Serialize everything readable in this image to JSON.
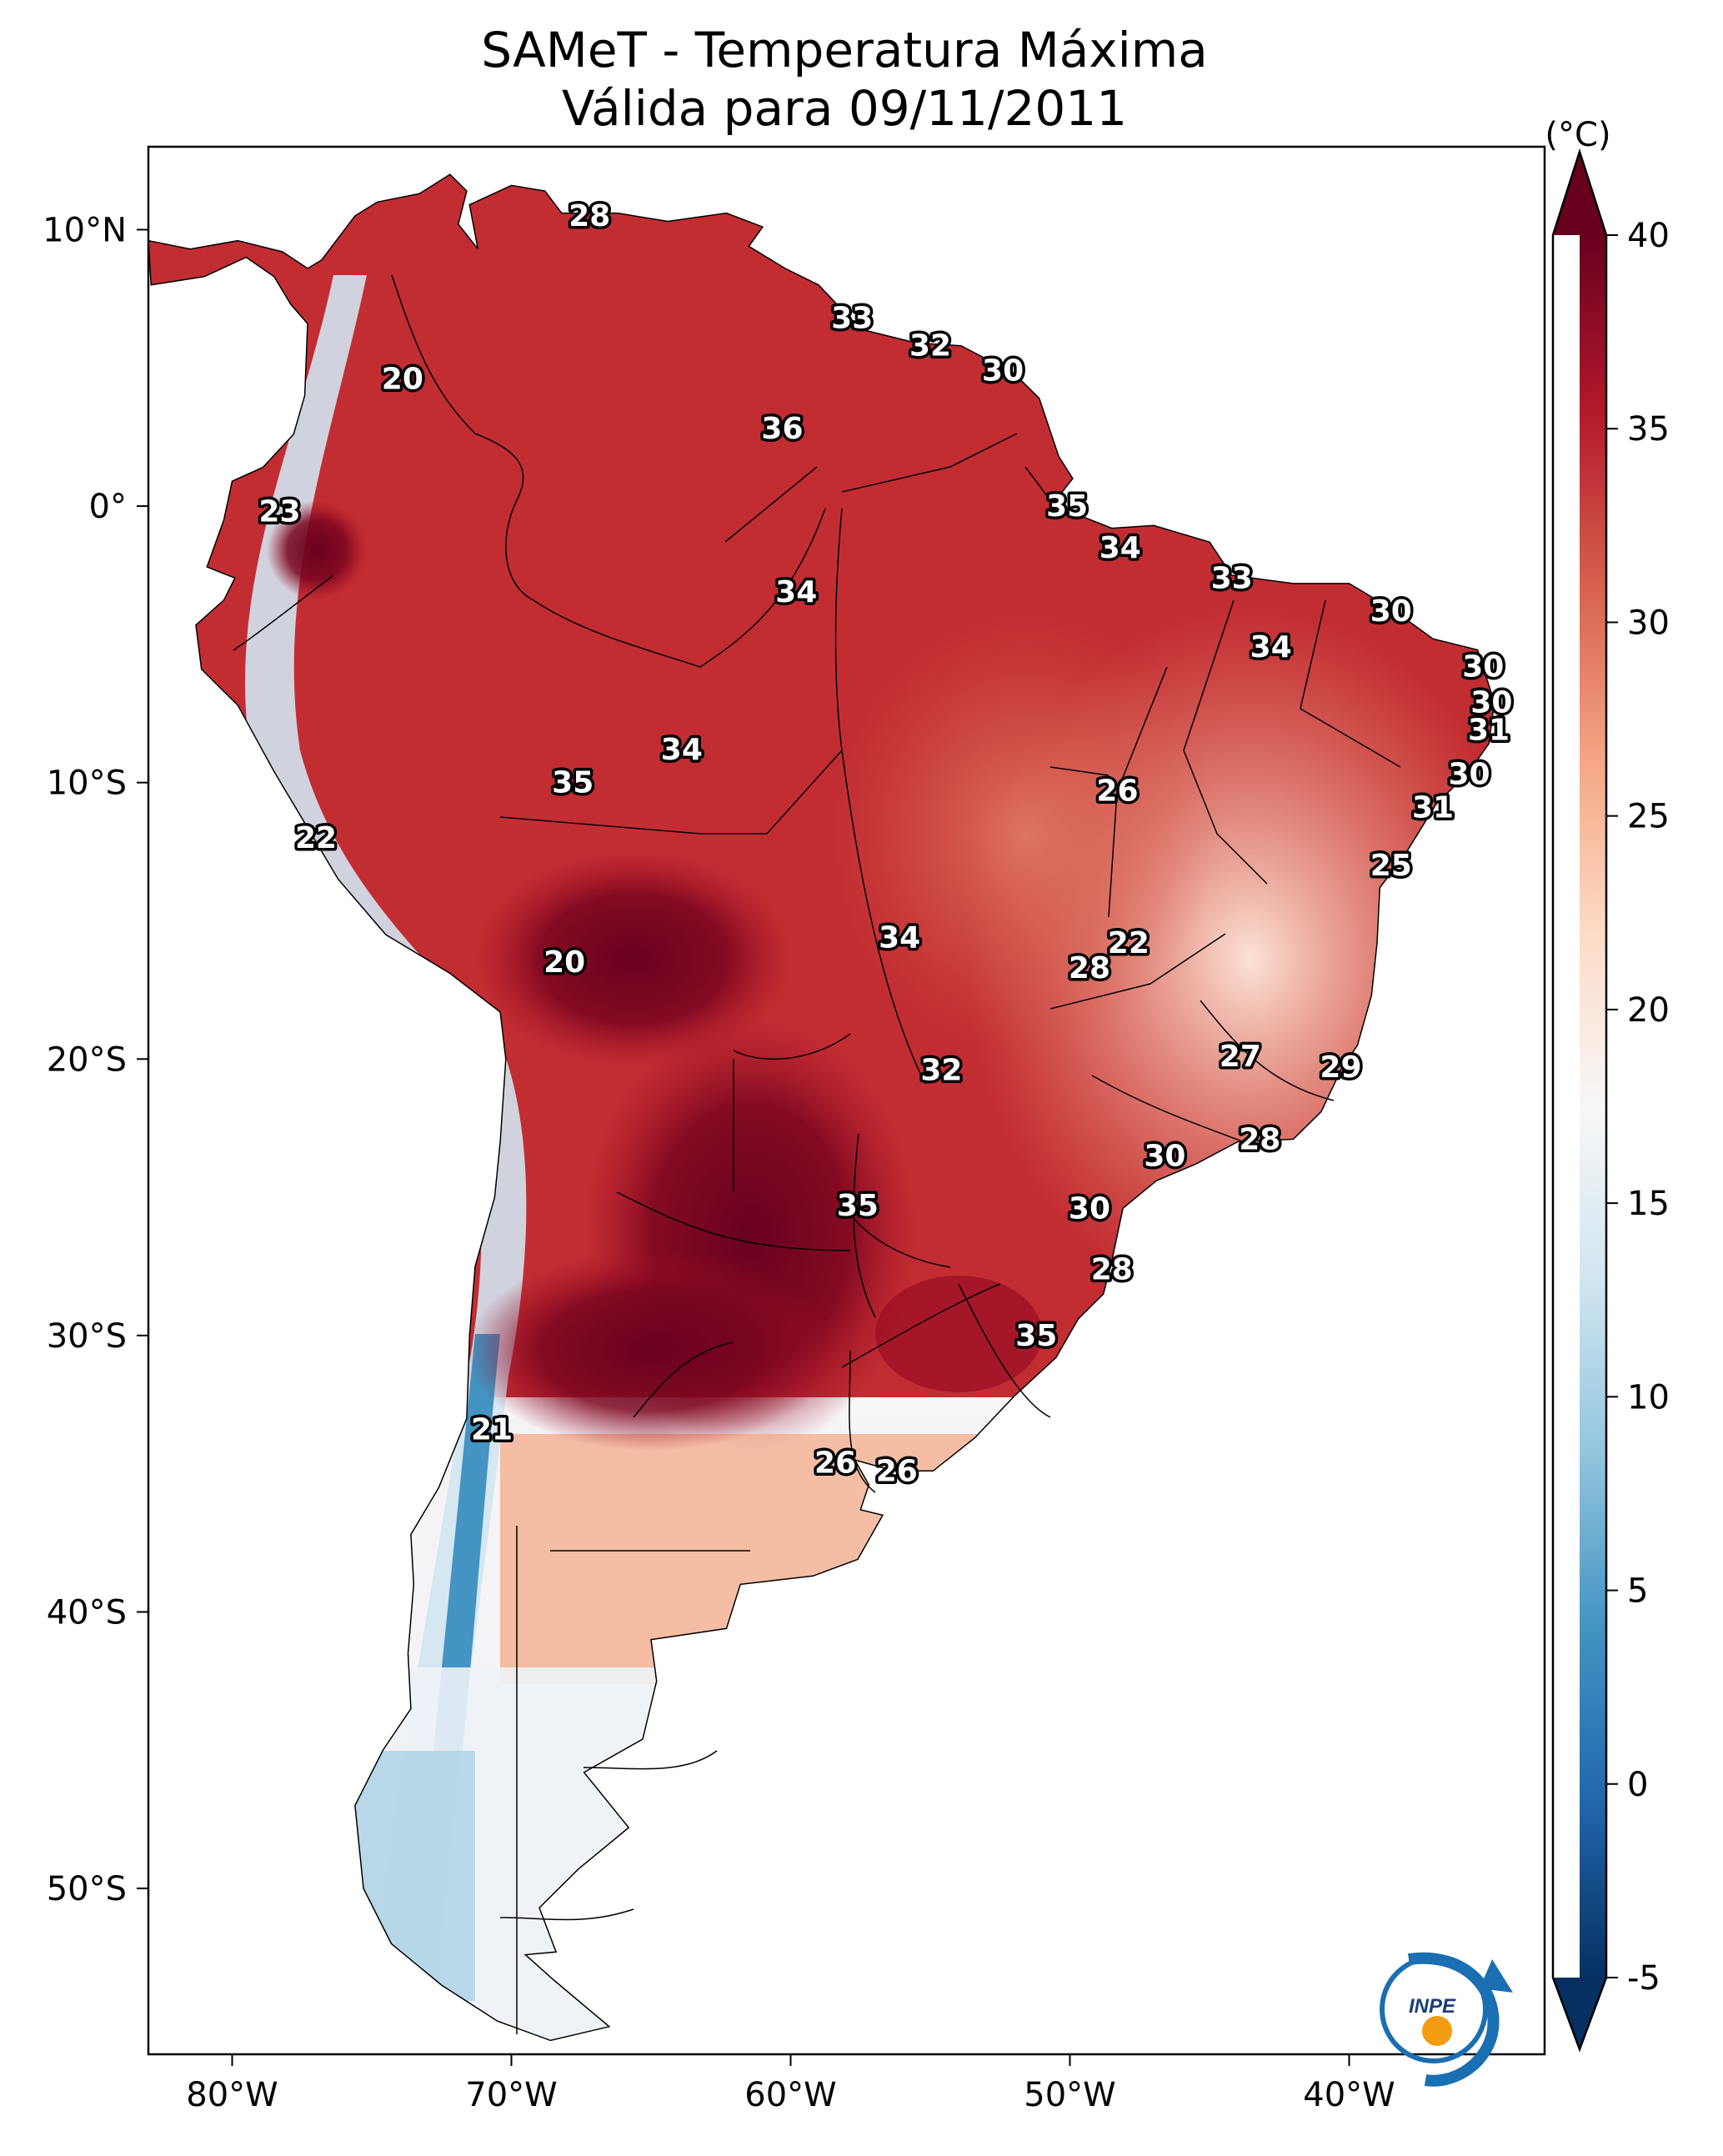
{
  "title": {
    "line1": "SAMeT - Temperatura Máxima",
    "line2": "Válida para 09/11/2011"
  },
  "axes": {
    "lon_ticks": [
      {
        "lon": -80,
        "label": "80°W"
      },
      {
        "lon": -70,
        "label": "70°W"
      },
      {
        "lon": -60,
        "label": "60°W"
      },
      {
        "lon": -50,
        "label": "50°W"
      },
      {
        "lon": -40,
        "label": "40°W"
      }
    ],
    "lat_ticks": [
      {
        "lat": 10,
        "label": "10°N"
      },
      {
        "lat": 0,
        "label": "0°"
      },
      {
        "lat": -10,
        "label": "10°S"
      },
      {
        "lat": -20,
        "label": "20°S"
      },
      {
        "lat": -30,
        "label": "30°S"
      },
      {
        "lat": -40,
        "label": "40°S"
      },
      {
        "lat": -50,
        "label": "50°S"
      }
    ],
    "lon_range": [
      -83,
      -33
    ],
    "lat_range": [
      -56,
      13
    ]
  },
  "colorbar": {
    "unit": "(°C)",
    "range": [
      -5,
      40
    ],
    "ticks": [
      {
        "v": 40,
        "label": "40"
      },
      {
        "v": 35,
        "label": "35"
      },
      {
        "v": 30,
        "label": "30"
      },
      {
        "v": 25,
        "label": "25"
      },
      {
        "v": 20,
        "label": "20"
      },
      {
        "v": 15,
        "label": "15"
      },
      {
        "v": 10,
        "label": "10"
      },
      {
        "v": 5,
        "label": "5"
      },
      {
        "v": 0,
        "label": "0"
      },
      {
        "v": -5,
        "label": "-5"
      }
    ],
    "colors": [
      "#053061",
      "#2166ac",
      "#4393c3",
      "#92c5de",
      "#d1e5f0",
      "#f7f7f7",
      "#fddbc7",
      "#f4a582",
      "#d6604d",
      "#b2182b",
      "#67001f"
    ]
  },
  "city_values": [
    {
      "lon": -67.2,
      "lat": 10.5,
      "text": "28"
    },
    {
      "lon": -57.8,
      "lat": 6.8,
      "text": "33"
    },
    {
      "lon": -55.0,
      "lat": 5.8,
      "text": "32"
    },
    {
      "lon": -52.4,
      "lat": 4.9,
      "text": "30"
    },
    {
      "lon": -73.9,
      "lat": 4.6,
      "text": "20"
    },
    {
      "lon": -60.3,
      "lat": 2.8,
      "text": "36"
    },
    {
      "lon": -50.1,
      "lat": 0.0,
      "text": "35"
    },
    {
      "lon": -78.3,
      "lat": -0.2,
      "text": "23"
    },
    {
      "lon": -48.2,
      "lat": -1.5,
      "text": "34"
    },
    {
      "lon": -44.2,
      "lat": -2.6,
      "text": "33"
    },
    {
      "lon": -59.8,
      "lat": -3.1,
      "text": "34"
    },
    {
      "lon": -38.5,
      "lat": -3.8,
      "text": "30"
    },
    {
      "lon": -42.8,
      "lat": -5.1,
      "text": "34"
    },
    {
      "lon": -35.2,
      "lat": -5.8,
      "text": "30"
    },
    {
      "lon": -34.9,
      "lat": -7.1,
      "text": "30"
    },
    {
      "lon": -35.0,
      "lat": -8.1,
      "text": "31"
    },
    {
      "lon": -63.9,
      "lat": -8.8,
      "text": "34"
    },
    {
      "lon": -67.8,
      "lat": -10.0,
      "text": "35"
    },
    {
      "lon": -35.7,
      "lat": -9.7,
      "text": "30"
    },
    {
      "lon": -48.3,
      "lat": -10.3,
      "text": "26"
    },
    {
      "lon": -37.0,
      "lat": -10.9,
      "text": "31"
    },
    {
      "lon": -77.0,
      "lat": -12.0,
      "text": "22"
    },
    {
      "lon": -38.5,
      "lat": -13.0,
      "text": "25"
    },
    {
      "lon": -56.1,
      "lat": -15.6,
      "text": "34"
    },
    {
      "lon": -47.9,
      "lat": -15.8,
      "text": "22"
    },
    {
      "lon": -49.3,
      "lat": -16.7,
      "text": "28"
    },
    {
      "lon": -68.1,
      "lat": -16.5,
      "text": "20"
    },
    {
      "lon": -43.9,
      "lat": -19.9,
      "text": "27"
    },
    {
      "lon": -40.3,
      "lat": -20.3,
      "text": "29"
    },
    {
      "lon": -54.6,
      "lat": -20.4,
      "text": "32"
    },
    {
      "lon": -43.2,
      "lat": -22.9,
      "text": "28"
    },
    {
      "lon": -46.6,
      "lat": -23.5,
      "text": "30"
    },
    {
      "lon": -57.6,
      "lat": -25.3,
      "text": "35"
    },
    {
      "lon": -49.3,
      "lat": -25.4,
      "text": "30"
    },
    {
      "lon": -48.5,
      "lat": -27.6,
      "text": "28"
    },
    {
      "lon": -51.2,
      "lat": -30.0,
      "text": "35"
    },
    {
      "lon": -70.7,
      "lat": -33.4,
      "text": "21"
    },
    {
      "lon": -58.4,
      "lat": -34.6,
      "text": "26"
    },
    {
      "lon": -56.2,
      "lat": -34.9,
      "text": "26"
    }
  ],
  "logo": {
    "text": "INPE"
  }
}
